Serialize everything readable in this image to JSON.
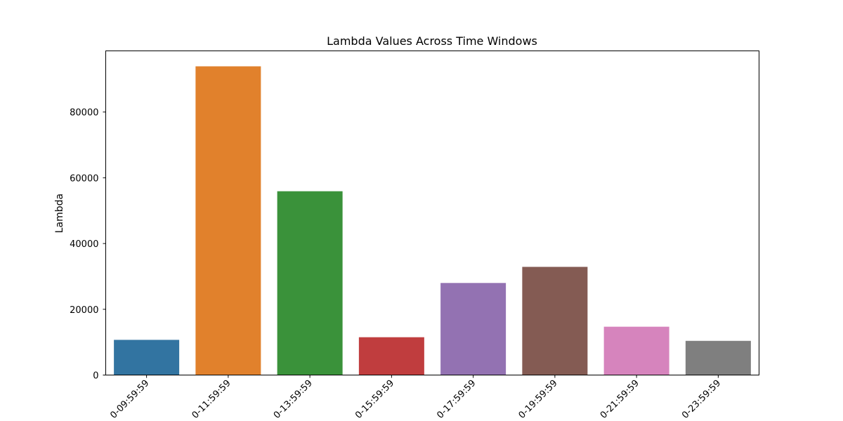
{
  "chart_data": {
    "type": "bar",
    "title": "Lambda Values Across Time Windows",
    "xlabel": "",
    "ylabel": "Lambda",
    "categories": [
      "0-09:59:59",
      "0-11:59:59",
      "0-13:59:59",
      "0-15:59:59",
      "0-17:59:59",
      "0-19:59:59",
      "0-21:59:59",
      "0-23:59:59"
    ],
    "values": [
      10700,
      93900,
      55900,
      11500,
      28000,
      32900,
      14700,
      10400
    ],
    "colors": [
      "#3274a1",
      "#e1812c",
      "#3a923a",
      "#c03d3e",
      "#9372b2",
      "#845b53",
      "#d684bd",
      "#7f7f7f"
    ],
    "ylim": [
      0,
      98600
    ],
    "yticks": [
      0,
      20000,
      40000,
      60000,
      80000
    ],
    "ytick_labels": [
      "0",
      "20000",
      "40000",
      "60000",
      "80000"
    ],
    "grid": false,
    "legend": "none"
  }
}
